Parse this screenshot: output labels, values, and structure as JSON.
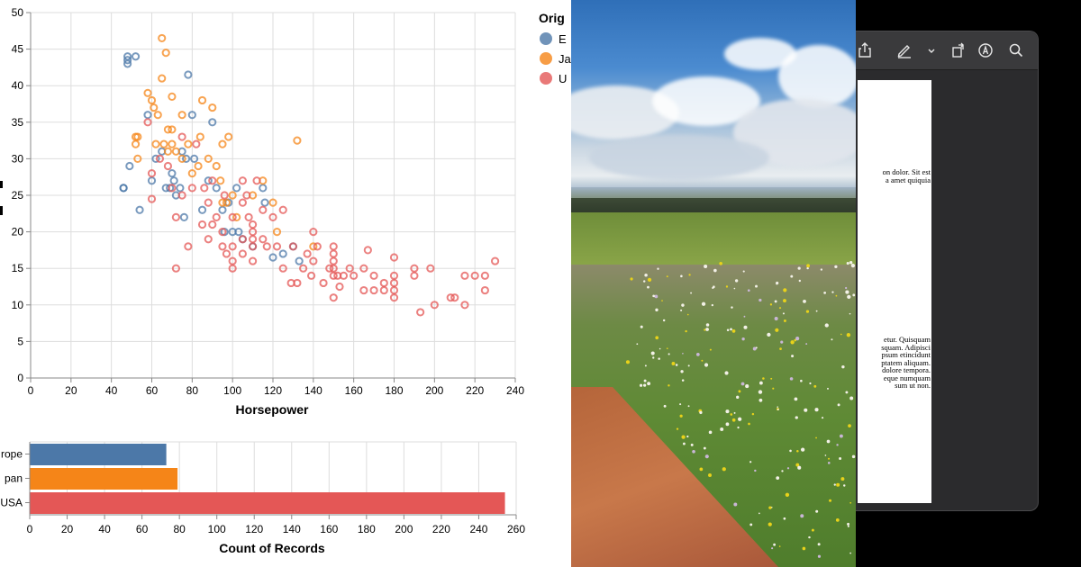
{
  "chart_data": [
    {
      "type": "scatter",
      "title": "",
      "xlabel": "Horsepower",
      "ylabel": "",
      "xlim": [
        0,
        240
      ],
      "ylim": [
        0,
        50
      ],
      "x_ticks": [
        "0",
        "20",
        "40",
        "60",
        "80",
        "100",
        "120",
        "140",
        "160",
        "180",
        "200",
        "220",
        "240"
      ],
      "y_ticks": [
        "0",
        "5",
        "10",
        "15",
        "20",
        "25",
        "30",
        "35",
        "40",
        "45",
        "50"
      ],
      "grid": true,
      "legend": {
        "title": "Orig",
        "placement": "top-right",
        "entries": [
          {
            "label": "E",
            "color": "#4c78a8"
          },
          {
            "label": "Ja",
            "color": "#f58518"
          },
          {
            "label": "U",
            "color": "#e45756"
          }
        ]
      },
      "series": [
        {
          "color": "#4c78a8",
          "points": [
            [
              46,
              26
            ],
            [
              46,
              26
            ],
            [
              48,
              44
            ],
            [
              48,
              43.5
            ],
            [
              48,
              43
            ],
            [
              49,
              29
            ],
            [
              52,
              44
            ],
            [
              54,
              23
            ],
            [
              58,
              36
            ],
            [
              60,
              27
            ],
            [
              62,
              30
            ],
            [
              65,
              31
            ],
            [
              67,
              26
            ],
            [
              69,
              26
            ],
            [
              70,
              28
            ],
            [
              71,
              27
            ],
            [
              72,
              25
            ],
            [
              74,
              26
            ],
            [
              75,
              31
            ],
            [
              76,
              22
            ],
            [
              77,
              30
            ],
            [
              78,
              41.5
            ],
            [
              80,
              36
            ],
            [
              81,
              30
            ],
            [
              85,
              23
            ],
            [
              88,
              27
            ],
            [
              90,
              35
            ],
            [
              92,
              26
            ],
            [
              95,
              23
            ],
            [
              96,
              20
            ],
            [
              98,
              24
            ],
            [
              100,
              20
            ],
            [
              102,
              26
            ],
            [
              103,
              20
            ],
            [
              105,
              19
            ],
            [
              110,
              18
            ],
            [
              115,
              26
            ],
            [
              116,
              24
            ],
            [
              120,
              16.5
            ],
            [
              125,
              17
            ],
            [
              130,
              18
            ],
            [
              133,
              16
            ]
          ]
        },
        {
          "color": "#f58518",
          "points": [
            [
              52,
              33
            ],
            [
              52,
              32
            ],
            [
              53,
              33
            ],
            [
              53,
              30
            ],
            [
              58,
              39
            ],
            [
              60,
              38
            ],
            [
              61,
              37
            ],
            [
              62,
              32
            ],
            [
              63,
              36
            ],
            [
              65,
              46.5
            ],
            [
              65,
              41
            ],
            [
              66,
              32
            ],
            [
              67,
              44.5
            ],
            [
              68,
              34
            ],
            [
              68,
              31
            ],
            [
              70,
              32
            ],
            [
              70,
              38.5
            ],
            [
              70,
              34
            ],
            [
              72,
              31
            ],
            [
              75,
              30
            ],
            [
              75,
              36
            ],
            [
              78,
              32
            ],
            [
              80,
              28
            ],
            [
              83,
              29
            ],
            [
              84,
              33
            ],
            [
              85,
              38
            ],
            [
              88,
              30
            ],
            [
              90,
              37
            ],
            [
              92,
              29
            ],
            [
              94,
              27
            ],
            [
              95,
              24
            ],
            [
              95,
              32
            ],
            [
              97,
              24
            ],
            [
              98,
              33
            ],
            [
              100,
              25
            ],
            [
              102,
              22
            ],
            [
              110,
              25
            ],
            [
              115,
              27
            ],
            [
              120,
              24
            ],
            [
              122,
              20
            ],
            [
              132,
              32.5
            ],
            [
              140,
              18
            ]
          ]
        },
        {
          "color": "#e45756",
          "points": [
            [
              58,
              35
            ],
            [
              60,
              28
            ],
            [
              60,
              24.5
            ],
            [
              64,
              30
            ],
            [
              68,
              29
            ],
            [
              70,
              26
            ],
            [
              72,
              15
            ],
            [
              72,
              22
            ],
            [
              75,
              33
            ],
            [
              75,
              25
            ],
            [
              78,
              18
            ],
            [
              80,
              26
            ],
            [
              82,
              32
            ],
            [
              85,
              21
            ],
            [
              86,
              26
            ],
            [
              88,
              24
            ],
            [
              88,
              19
            ],
            [
              90,
              27
            ],
            [
              90,
              21
            ],
            [
              92,
              22
            ],
            [
              95,
              20
            ],
            [
              95,
              18
            ],
            [
              96,
              25
            ],
            [
              97,
              17
            ],
            [
              100,
              18
            ],
            [
              100,
              22
            ],
            [
              100,
              15
            ],
            [
              100,
              16
            ],
            [
              105,
              19
            ],
            [
              105,
              24
            ],
            [
              105,
              27
            ],
            [
              105,
              17
            ],
            [
              107,
              25
            ],
            [
              108,
              22
            ],
            [
              110,
              18
            ],
            [
              110,
              20
            ],
            [
              110,
              19
            ],
            [
              110,
              16
            ],
            [
              110,
              21
            ],
            [
              112,
              27
            ],
            [
              115,
              23
            ],
            [
              115,
              19
            ],
            [
              117,
              18
            ],
            [
              120,
              22
            ],
            [
              122,
              18
            ],
            [
              125,
              23
            ],
            [
              125,
              15
            ],
            [
              129,
              13
            ],
            [
              130,
              18
            ],
            [
              132,
              13
            ],
            [
              135,
              15
            ],
            [
              137,
              17
            ],
            [
              139,
              14
            ],
            [
              140,
              16
            ],
            [
              140,
              20
            ],
            [
              142,
              18
            ],
            [
              145,
              13
            ],
            [
              148,
              15
            ],
            [
              150,
              15
            ],
            [
              150,
              14
            ],
            [
              150,
              17
            ],
            [
              150,
              11
            ],
            [
              150,
              16
            ],
            [
              150,
              18
            ],
            [
              152,
              14
            ],
            [
              153,
              12.5
            ],
            [
              155,
              14
            ],
            [
              158,
              15
            ],
            [
              160,
              14
            ],
            [
              165,
              12
            ],
            [
              165,
              15
            ],
            [
              167,
              17.5
            ],
            [
              170,
              12
            ],
            [
              170,
              14
            ],
            [
              175,
              13
            ],
            [
              175,
              12
            ],
            [
              180,
              14
            ],
            [
              180,
              16.5
            ],
            [
              180,
              13
            ],
            [
              180,
              12
            ],
            [
              180,
              11
            ],
            [
              190,
              14
            ],
            [
              190,
              15
            ],
            [
              193,
              9
            ],
            [
              198,
              15
            ],
            [
              200,
              10
            ],
            [
              208,
              11
            ],
            [
              210,
              11
            ],
            [
              215,
              10
            ],
            [
              215,
              14
            ],
            [
              220,
              14
            ],
            [
              225,
              14
            ],
            [
              225,
              12
            ],
            [
              230,
              16
            ]
          ]
        }
      ]
    },
    {
      "type": "bar",
      "orientation": "horizontal",
      "title": "",
      "xlabel": "Count of Records",
      "ylabel": "",
      "xlim": [
        0,
        260
      ],
      "x_ticks": [
        "0",
        "20",
        "40",
        "60",
        "80",
        "100",
        "120",
        "140",
        "160",
        "180",
        "200",
        "220",
        "240",
        "260"
      ],
      "categories": [
        "rope",
        "pan",
        "USA"
      ],
      "values": [
        73,
        79,
        254
      ],
      "colors": [
        "#4c78a8",
        "#f58518",
        "#e45756"
      ],
      "grid": true
    }
  ],
  "photo": {
    "subject": "landscape-photo"
  },
  "viewer": {
    "toolbar_icons": [
      "share-icon",
      "markup-pen-icon",
      "chevron-down-icon",
      "rotate-icon",
      "annotate-circle-a-icon",
      "search-icon"
    ],
    "para1": [
      "on dolor. Sit est",
      "a  amet  quiquia"
    ],
    "para2": [
      "etur.  Quisquam",
      "squam.  Adipisci",
      "psum etincidunt",
      "ptatem  aliquam.",
      "dolore  tempora.",
      "eque  numquam",
      "sum ut non."
    ]
  }
}
